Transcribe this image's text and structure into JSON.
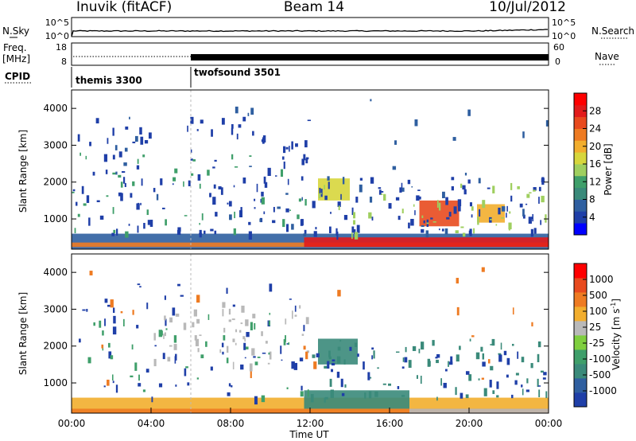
{
  "header": {
    "station": "Inuvik (fitACF)",
    "beam": "Beam 14",
    "date": "10/Jul/2012"
  },
  "chart_data": [
    {
      "type": "line",
      "panel": "noise",
      "left_label": "N.Sky",
      "right_label": "N.Search",
      "left_ticks": [
        "10^5",
        "10^0"
      ],
      "right_ticks": [
        "10^5",
        "10^0"
      ]
    },
    {
      "type": "line",
      "panel": "frequency",
      "left_label": [
        "Freq.",
        "[MHz]"
      ],
      "right_label": "Nave",
      "left_ticks": [
        "18",
        "8"
      ],
      "right_ticks": [
        "60",
        "0"
      ]
    },
    {
      "type": "table",
      "panel": "cpid",
      "label": "CPID",
      "segments": [
        {
          "name": "themis 3300",
          "start_hour": 0,
          "end_hour": 6
        },
        {
          "name": "twofsound 3501",
          "start_hour": 6,
          "end_hour": 24
        }
      ]
    },
    {
      "type": "heatmap",
      "panel": "power",
      "ylabel": "Slant Range [km]",
      "yticks": [
        1000,
        2000,
        3000,
        4000
      ],
      "ylim": [
        180,
        4500
      ],
      "colorbar": {
        "label": "Power [dB]",
        "ticks": [
          "28",
          "24",
          "20",
          "16",
          "12",
          "8",
          "4"
        ],
        "colors": [
          "#0000ff",
          "#1f3fa8",
          "#2f5fa0",
          "#3a8a7a",
          "#3f9f6a",
          "#9fcf5f",
          "#d7d63c",
          "#f2ae2e",
          "#ee7b22",
          "#e84a1e",
          "#e21b1b",
          "#ff0000"
        ]
      },
      "bands": [
        {
          "x0": 0,
          "x1": 24,
          "r0": 180,
          "r1": 600,
          "color": "#2f5fa0"
        },
        {
          "x0": 0,
          "x1": 24,
          "r0": 240,
          "r1": 360,
          "color": "#ee7b22"
        },
        {
          "x0": 11.7,
          "x1": 24,
          "r0": 240,
          "r1": 500,
          "color": "#e21b1b"
        },
        {
          "x0": 17.5,
          "x1": 19.5,
          "r0": 800,
          "r1": 1500,
          "color": "#e84a1e"
        },
        {
          "x0": 20.4,
          "x1": 21.8,
          "r0": 900,
          "r1": 1400,
          "color": "#f2ae2e"
        },
        {
          "x0": 12.4,
          "x1": 14.0,
          "r0": 1500,
          "r1": 2100,
          "color": "#d7d63c"
        }
      ],
      "scatter_regions": [
        {
          "x0": 0,
          "x1": 12,
          "r0": 600,
          "r1": 3800,
          "color": "#1f3fa8",
          "n": 120
        },
        {
          "x0": 0,
          "x1": 12,
          "r0": 600,
          "r1": 3000,
          "color": "#3f9f6a",
          "n": 40
        },
        {
          "x0": 12,
          "x1": 24,
          "r0": 600,
          "r1": 2200,
          "color": "#1f3fa8",
          "n": 80
        },
        {
          "x0": 12,
          "x1": 24,
          "r0": 600,
          "r1": 2000,
          "color": "#9fcf5f",
          "n": 40
        },
        {
          "x0": 0,
          "x1": 24,
          "r0": 600,
          "r1": 4400,
          "color": "#2f5fa0",
          "n": 40
        }
      ]
    },
    {
      "type": "heatmap",
      "panel": "velocity",
      "ylabel": "Slant Range [km]",
      "xlabel": "Time UT",
      "xticks": [
        "00:00",
        "04:00",
        "08:00",
        "12:00",
        "16:00",
        "20:00",
        "00:00"
      ],
      "yticks": [
        1000,
        2000,
        3000,
        4000
      ],
      "ylim": [
        180,
        4500
      ],
      "colorbar": {
        "label": "Velocity [m s^-1]",
        "ticks": [
          "1000",
          "500",
          "100",
          "25",
          "-25",
          "-100",
          "-500",
          "-1000"
        ],
        "colors": [
          "#1f3fa8",
          "#2f5fa0",
          "#3a8a7a",
          "#3f9f6a",
          "#7fcf3f",
          "#b9b9b9",
          "#f2ae2e",
          "#ee7b22",
          "#e84a1e",
          "#ff0000"
        ]
      },
      "bands": [
        {
          "x0": 0,
          "x1": 24,
          "r0": 180,
          "r1": 600,
          "color": "#f2ae2e"
        },
        {
          "x0": 0,
          "x1": 24,
          "r0": 180,
          "r1": 300,
          "color": "#ee7b22"
        },
        {
          "x0": 11.7,
          "x1": 17,
          "r0": 300,
          "r1": 800,
          "color": "#3a8a7a"
        },
        {
          "x0": 17,
          "x1": 24,
          "r0": 180,
          "r1": 300,
          "color": "#b9b9b9"
        },
        {
          "x0": 12.4,
          "x1": 14.4,
          "r0": 1500,
          "r1": 2200,
          "color": "#3a8a7a"
        }
      ],
      "scatter_regions": [
        {
          "x0": 0,
          "x1": 12,
          "r0": 600,
          "r1": 3800,
          "color": "#1f3fa8",
          "n": 60
        },
        {
          "x0": 4,
          "x1": 12,
          "r0": 1500,
          "r1": 3200,
          "color": "#b9b9b9",
          "n": 50
        },
        {
          "x0": 0,
          "x1": 12,
          "r0": 600,
          "r1": 3000,
          "color": "#3f9f6a",
          "n": 40
        },
        {
          "x0": 12,
          "x1": 24,
          "r0": 600,
          "r1": 2200,
          "color": "#3a8a7a",
          "n": 70
        },
        {
          "x0": 12,
          "x1": 24,
          "r0": 600,
          "r1": 2000,
          "color": "#1f3fa8",
          "n": 40
        },
        {
          "x0": 0,
          "x1": 24,
          "r0": 600,
          "r1": 4400,
          "color": "#ee7b22",
          "n": 20
        }
      ]
    }
  ]
}
